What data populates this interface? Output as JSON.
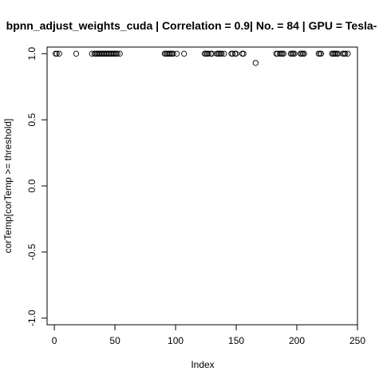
{
  "chart_data": {
    "type": "scatter",
    "title": "bpnn_adjust_weights_cuda | Correlation = 0.9| No. = 84 | GPU = Tesla-",
    "xlabel": "Index",
    "ylabel": "corTemp[corTemp >= threshold]",
    "xlim": [
      -6,
      250
    ],
    "ylim": [
      -1.05,
      1.05
    ],
    "xticks": [
      0,
      50,
      100,
      150,
      200,
      250
    ],
    "yticks": [
      -1.0,
      -0.5,
      0.0,
      0.5,
      1.0
    ],
    "xtick_labels": [
      "0",
      "50",
      "100",
      "150",
      "200",
      "250"
    ],
    "ytick_labels": [
      "-1.0",
      "-0.5",
      "0.0",
      "0.5",
      "1.0"
    ],
    "marker": "open-circle",
    "grid": false,
    "x": [
      1,
      2,
      4,
      18,
      31,
      33,
      34,
      35,
      36,
      37,
      38,
      39,
      40,
      41,
      42,
      43,
      44,
      45,
      46,
      47,
      48,
      49,
      50,
      51,
      52,
      54,
      91,
      92,
      93,
      94,
      95,
      96,
      97,
      98,
      101,
      107,
      124,
      125,
      126,
      127,
      129,
      130,
      134,
      135,
      136,
      137,
      138,
      140,
      146,
      147,
      149,
      150,
      155,
      156,
      166,
      183,
      184,
      186,
      187,
      188,
      189,
      195,
      196,
      197,
      198,
      203,
      204,
      205,
      206,
      218,
      219,
      220,
      229,
      230,
      231,
      232,
      233,
      234,
      238,
      239,
      240,
      242
    ],
    "y": [
      1.0,
      1.0,
      1.0,
      1.0,
      1.0,
      1.0,
      1.0,
      1.0,
      1.0,
      1.0,
      1.0,
      1.0,
      1.0,
      1.0,
      1.0,
      1.0,
      1.0,
      1.0,
      1.0,
      1.0,
      1.0,
      1.0,
      1.0,
      1.0,
      1.0,
      1.0,
      1.0,
      1.0,
      1.0,
      1.0,
      1.0,
      1.0,
      1.0,
      1.0,
      1.0,
      1.0,
      1.0,
      1.0,
      1.0,
      1.0,
      1.0,
      1.0,
      1.0,
      1.0,
      1.0,
      1.0,
      1.0,
      1.0,
      1.0,
      1.0,
      1.0,
      1.0,
      1.0,
      1.0,
      0.93,
      1.0,
      1.0,
      1.0,
      1.0,
      1.0,
      1.0,
      1.0,
      1.0,
      1.0,
      1.0,
      1.0,
      1.0,
      1.0,
      1.0,
      1.0,
      1.0,
      1.0,
      1.0,
      1.0,
      1.0,
      1.0,
      1.0,
      1.0,
      1.0,
      1.0,
      1.0,
      1.0
    ]
  }
}
